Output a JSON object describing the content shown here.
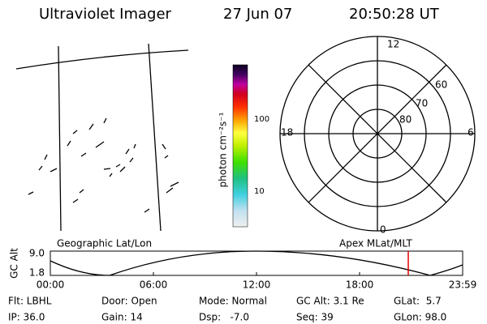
{
  "header": {
    "title": "Ultraviolet Imager",
    "date": "27 Jun 07",
    "time": "20:50:28 UT"
  },
  "colorbar": {
    "label": "photon cm⁻²s⁻¹",
    "ticks": [
      "100",
      "10"
    ]
  },
  "polar": {
    "mlt_labels": [
      "12",
      "6",
      "18",
      "0"
    ],
    "lat_labels": [
      "60",
      "70",
      "80"
    ]
  },
  "altitude_panel": {
    "left_title": "Geographic Lat/Lon",
    "right_title": "Apex MLat/MLT",
    "y_label": "GC Alt",
    "yticks": [
      "9.0",
      "1.8"
    ],
    "xticks": [
      "00:00",
      "06:00",
      "12:00",
      "18:00",
      "23:59"
    ]
  },
  "status": {
    "rows": [
      [
        "Flt: LBHL",
        "Door: Open",
        "Mode: Normal",
        "GC Alt: 3.1 Re",
        "GLat:  5.7"
      ],
      [
        "IP: 36.0",
        "Gain: 14",
        "Dsp:   -7.0",
        "Seq: 39",
        "GLon: 98.0"
      ]
    ]
  }
}
